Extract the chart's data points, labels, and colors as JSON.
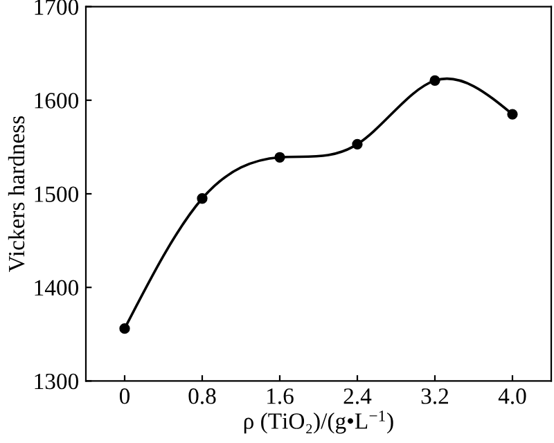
{
  "chart_data": {
    "type": "line",
    "xlabel": "ρ (TiO₂)/(g•L$^{−1}$)",
    "ylabel": "Vickers hardness",
    "x": [
      0,
      0.8,
      1.6,
      2.4,
      3.2,
      4.0
    ],
    "series": [
      {
        "color": "#000000",
        "values": [
          1356,
          1495,
          1539,
          1553,
          1621,
          1585
        ]
      }
    ],
    "xlim": [
      -0.4,
      4.4
    ],
    "ylim": [
      1300,
      1700
    ],
    "xticks": [
      0,
      0.8,
      1.6,
      2.4,
      3.2,
      {
        "value": 4.0,
        "label": "4.0"
      }
    ],
    "yticks": [
      1300,
      1400,
      1500,
      1600,
      1700
    ],
    "marker": "circle",
    "line_style": "solid",
    "grid": false
  }
}
